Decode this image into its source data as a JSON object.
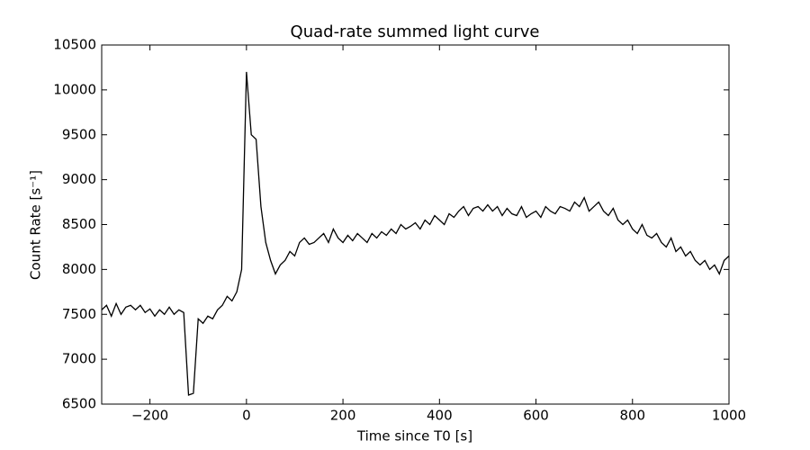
{
  "chart_data": {
    "type": "line",
    "title": "Quad-rate summed light curve",
    "x_label": "Time since T0 [s]",
    "y_label": "Count Rate [s⁻¹]",
    "x": [
      -300,
      -290,
      -280,
      -270,
      -260,
      -250,
      -240,
      -230,
      -220,
      -210,
      -200,
      -190,
      -180,
      -170,
      -160,
      -150,
      -140,
      -130,
      -120,
      -110,
      -100,
      -90,
      -80,
      -70,
      -60,
      -50,
      -40,
      -30,
      -20,
      -10,
      0,
      10,
      20,
      30,
      40,
      50,
      60,
      70,
      80,
      90,
      100,
      110,
      120,
      130,
      140,
      150,
      160,
      170,
      180,
      190,
      200,
      210,
      220,
      230,
      240,
      250,
      260,
      270,
      280,
      290,
      300,
      310,
      320,
      330,
      340,
      350,
      360,
      370,
      380,
      390,
      400,
      410,
      420,
      430,
      440,
      450,
      460,
      470,
      480,
      490,
      500,
      510,
      520,
      530,
      540,
      550,
      560,
      570,
      580,
      590,
      600,
      610,
      620,
      630,
      640,
      650,
      660,
      670,
      680,
      690,
      700,
      710,
      720,
      730,
      740,
      750,
      760,
      770,
      780,
      790,
      800,
      810,
      820,
      830,
      840,
      850,
      860,
      870,
      880,
      890,
      900,
      910,
      920,
      930,
      940,
      950,
      960,
      970,
      980,
      990,
      1000
    ],
    "series": [
      {
        "color": "#000000",
        "values": [
          7550,
          7600,
          7480,
          7620,
          7500,
          7580,
          7600,
          7550,
          7600,
          7520,
          7560,
          7480,
          7550,
          7500,
          7580,
          7500,
          7550,
          7520,
          6600,
          6620,
          7450,
          7400,
          7480,
          7450,
          7550,
          7600,
          7700,
          7650,
          7750,
          8000,
          10200,
          9500,
          9450,
          8700,
          8300,
          8100,
          7950,
          8050,
          8100,
          8200,
          8150,
          8300,
          8350,
          8280,
          8300,
          8350,
          8400,
          8300,
          8450,
          8350,
          8300,
          8380,
          8320,
          8400,
          8350,
          8300,
          8400,
          8350,
          8420,
          8380,
          8450,
          8400,
          8500,
          8450,
          8480,
          8520,
          8450,
          8550,
          8500,
          8600,
          8550,
          8500,
          8620,
          8580,
          8650,
          8700,
          8600,
          8680,
          8700,
          8650,
          8720,
          8650,
          8700,
          8600,
          8680,
          8620,
          8600,
          8700,
          8580,
          8620,
          8650,
          8580,
          8700,
          8650,
          8620,
          8700,
          8680,
          8650,
          8750,
          8700,
          8800,
          8650,
          8700,
          8750,
          8650,
          8600,
          8680,
          8550,
          8500,
          8550,
          8450,
          8400,
          8500,
          8380,
          8350,
          8400,
          8300,
          8250,
          8350,
          8200,
          8250,
          8150,
          8200,
          8100,
          8050,
          8100,
          8000,
          8050,
          7950,
          8100,
          8150
        ]
      }
    ],
    "xlim": [
      -300,
      1000
    ],
    "xticks": [
      {
        "value": -200,
        "label": "−200"
      },
      0,
      200,
      400,
      600,
      800,
      1000
    ],
    "ylim": [
      6500,
      10500
    ],
    "yticks": [
      6500,
      7000,
      7500,
      8000,
      8500,
      9000,
      9500,
      10000,
      10500
    ]
  }
}
